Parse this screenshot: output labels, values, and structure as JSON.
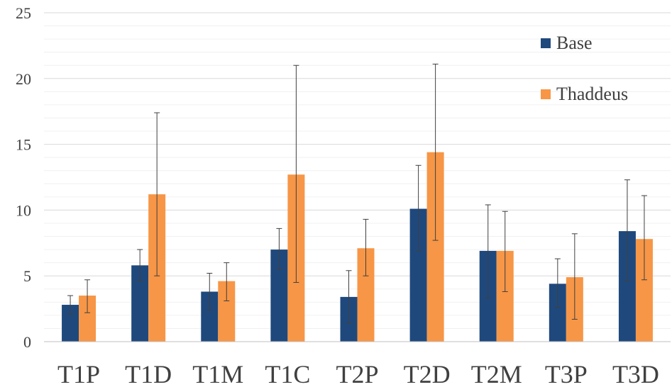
{
  "chart_data": {
    "type": "bar",
    "categories": [
      "T1P",
      "T1D",
      "T1M",
      "T1C",
      "T2P",
      "T2D",
      "T2M",
      "T3P",
      "T3D"
    ],
    "series": [
      {
        "name": "Base",
        "color": "#1f497d",
        "values": [
          2.8,
          5.8,
          3.8,
          7.0,
          3.4,
          10.1,
          6.9,
          4.4,
          8.4
        ],
        "err_low": [
          2.1,
          4.6,
          2.4,
          5.5,
          1.4,
          6.9,
          3.3,
          2.6,
          4.6
        ],
        "err_high": [
          3.5,
          7.0,
          5.2,
          8.6,
          5.4,
          13.4,
          10.4,
          6.3,
          12.3
        ]
      },
      {
        "name": "Thaddeus",
        "color": "#f79646",
        "values": [
          3.5,
          11.2,
          4.6,
          12.7,
          7.1,
          14.4,
          6.9,
          4.9,
          7.8
        ],
        "err_low": [
          2.2,
          5.0,
          3.1,
          4.5,
          5.0,
          7.7,
          3.8,
          1.7,
          4.7
        ],
        "err_high": [
          4.7,
          17.4,
          6.0,
          21.0,
          9.3,
          21.1,
          9.9,
          8.2,
          11.1
        ]
      }
    ],
    "ylim": [
      0,
      25
    ],
    "yticks": [
      0,
      5,
      10,
      15,
      20,
      25
    ],
    "minor_step": 1,
    "grid": true,
    "legend": "top-right",
    "title": "",
    "xlabel": "",
    "ylabel": ""
  }
}
